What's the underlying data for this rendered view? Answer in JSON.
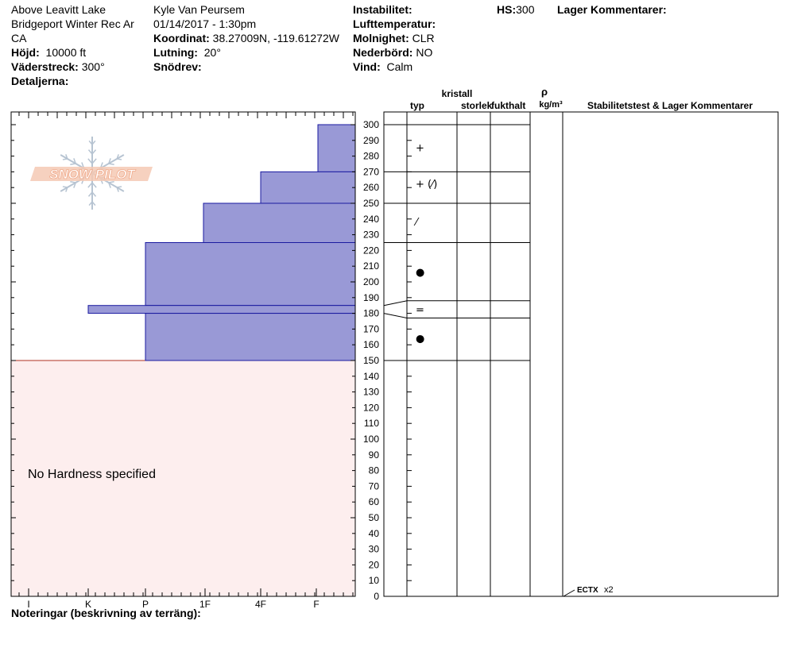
{
  "header": {
    "location": "Above Leavitt Lake",
    "area": "Bridgeport Winter Rec Ar",
    "state": "CA",
    "elevation_label": "Höjd:",
    "elevation_value": "10000 ft",
    "aspect_label": "Väderstreck:",
    "aspect_value": "300°",
    "details_label": "Detaljerna:",
    "observer": "Kyle Van Peursem",
    "datetime": "01/14/2017 - 1:30pm",
    "coord_label": "Koordinat:",
    "coord_value": "38.27009N, -119.61272W",
    "slope_label": "Lutning:",
    "slope_value": "20°",
    "drift_label": "Snödrev:",
    "drift_value": "",
    "instability_label": "Instabilitet:",
    "instability_value": "",
    "airtemp_label": "Lufttemperatur:",
    "airtemp_value": "",
    "sky_label": "Molnighet:",
    "sky_value": "CLR",
    "precip_label": "Nederbörd:",
    "precip_value": "NO",
    "wind_label": "Vind:",
    "wind_value": "Calm",
    "hs_label": "HS:",
    "hs_value": "300",
    "layer_comments_label": "Lager Kommentarer:"
  },
  "notes_label": "Noteringar (beskrivning av terräng):",
  "logo_text": "SNOW PILOT",
  "colors": {
    "hardness_fill": "#9999d6",
    "hardness_stroke": "#1a1aa0",
    "no_hardness_fill": "#fdeeee",
    "no_hardness_line": "#b03020",
    "logo": "#f0a98a"
  },
  "chart_data": {
    "type": "snow-profile",
    "y_axis": {
      "min": 0,
      "max": 300,
      "major_step": 10,
      "label_step": 10
    },
    "hardness_categories": [
      "I",
      "K",
      "P",
      "1F",
      "4F",
      "F"
    ],
    "hardness_layers": [
      {
        "top": 300,
        "bottom": 270,
        "hardness": "F"
      },
      {
        "top": 270,
        "bottom": 250,
        "hardness": "4F"
      },
      {
        "top": 250,
        "bottom": 225,
        "hardness": "1F"
      },
      {
        "top": 225,
        "bottom": 185,
        "hardness": "P"
      },
      {
        "top": 185,
        "bottom": 180,
        "hardness": "K"
      },
      {
        "top": 180,
        "bottom": 150,
        "hardness": "P"
      }
    ],
    "no_hardness": {
      "top": 150,
      "bottom": 0,
      "label": "No Hardness specified"
    },
    "columns": {
      "crystal_group_label": "kristall",
      "type_label": "typ",
      "size_label": "storlek",
      "moisture_label": "fukthalt",
      "density_symbol": "ρ",
      "density_unit": "kg/m³",
      "stability_label": "Stabilitetstest & Lager Kommentarer"
    },
    "layer_boundaries": [
      300,
      270,
      250,
      225,
      188,
      177,
      150
    ],
    "grain_symbols": [
      {
        "at": 285,
        "symbol": "+"
      },
      {
        "at": 262,
        "symbol": "+ (⁄)"
      },
      {
        "at": 238,
        "symbol": "⁄"
      },
      {
        "at": 206,
        "symbol": "●"
      },
      {
        "at": 182,
        "symbol": "="
      },
      {
        "at": 164,
        "symbol": "●"
      }
    ],
    "stability_tests": [
      {
        "at": 0,
        "label": "ECTX",
        "count": "x2"
      }
    ]
  }
}
